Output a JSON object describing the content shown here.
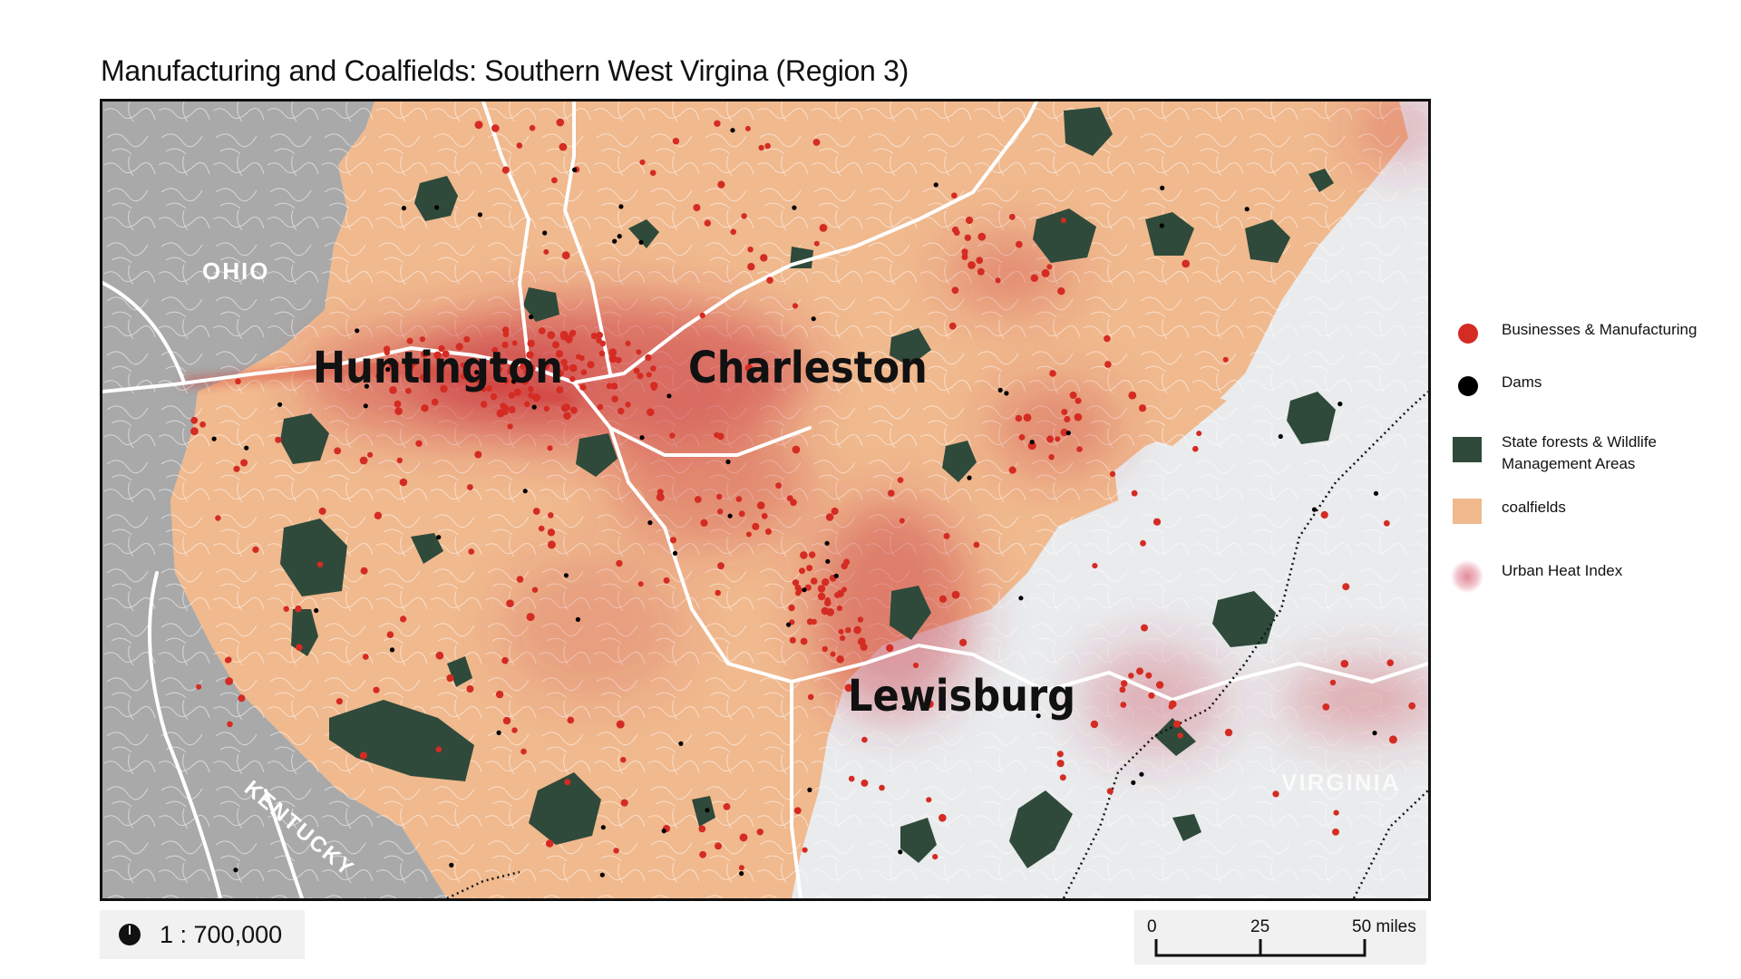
{
  "title": "Manufacturing and Coalfields: Southern West Virgina (Region 3)",
  "map": {
    "cities": [
      "Huntington",
      "Charleston",
      "Lewisburg"
    ],
    "states": [
      "OHIO",
      "KENTUCKY",
      "VIRGINIA"
    ]
  },
  "legend": {
    "items": [
      {
        "label": "Businesses & Manufacturing",
        "symbol": "red-dot",
        "color": "#d42b23"
      },
      {
        "label": "Dams",
        "symbol": "black-dot",
        "color": "#000000"
      },
      {
        "label": "State forests & Wildlife Management Areas",
        "symbol": "green-square",
        "color": "#2f4a3a"
      },
      {
        "label": "coalfields",
        "symbol": "tan-square",
        "color": "#f0b98e"
      },
      {
        "label": "Urban Heat Index",
        "symbol": "pink-blur",
        "color": "#e38a99"
      }
    ]
  },
  "scale": {
    "ratio": "1 : 700,000",
    "bar_labels": [
      "0",
      "25",
      "50 miles"
    ]
  },
  "colors": {
    "coalfield": "#f0b98e",
    "outside_gray": "#a9a9a9",
    "non_coal": "#e9ebed",
    "forest": "#2f4a3a",
    "business": "#d42b23",
    "heat": "#c8323f"
  }
}
